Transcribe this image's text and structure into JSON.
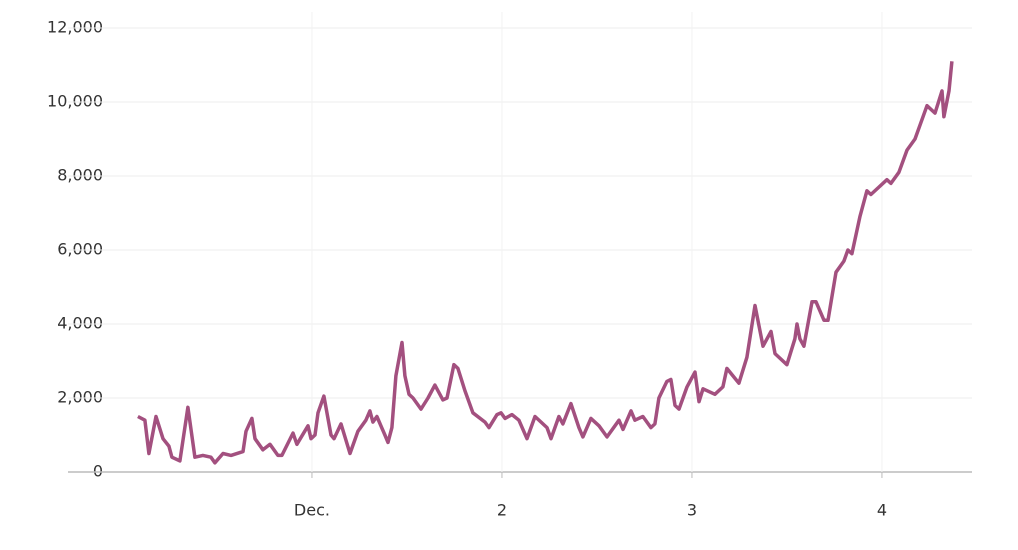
{
  "chart_data": {
    "type": "line",
    "x": [
      0.084,
      0.121,
      0.142,
      0.179,
      0.216,
      0.247,
      0.263,
      0.305,
      0.347,
      0.384,
      0.426,
      0.468,
      0.489,
      0.532,
      0.574,
      0.637,
      0.653,
      0.684,
      0.7,
      0.742,
      0.779,
      0.821,
      0.842,
      0.9,
      0.921,
      0.979,
      0.995,
      1.016,
      1.032,
      1.063,
      1.1,
      1.116,
      1.153,
      1.2,
      1.242,
      1.284,
      1.305,
      1.321,
      1.342,
      1.384,
      1.4,
      1.421,
      1.442,
      1.474,
      1.489,
      1.511,
      1.532,
      1.574,
      1.611,
      1.647,
      1.689,
      1.711,
      1.747,
      1.768,
      1.805,
      1.847,
      1.911,
      1.932,
      1.974,
      1.995,
      2.016,
      2.053,
      2.089,
      2.132,
      2.174,
      2.237,
      2.258,
      2.3,
      2.321,
      2.363,
      2.405,
      2.426,
      2.468,
      2.511,
      2.553,
      2.616,
      2.637,
      2.679,
      2.7,
      2.742,
      2.784,
      2.805,
      2.826,
      2.868,
      2.889,
      2.911,
      2.932,
      2.974,
      3.016,
      3.037,
      3.058,
      3.121,
      3.163,
      3.184,
      3.247,
      3.289,
      3.332,
      3.374,
      3.416,
      3.437,
      3.5,
      3.542,
      3.553,
      3.568,
      3.589,
      3.632,
      3.653,
      3.695,
      3.716,
      3.758,
      3.8,
      3.821,
      3.842,
      3.884,
      3.921,
      3.942,
      3.984,
      4.026,
      4.047,
      4.089,
      4.132,
      4.174,
      4.216,
      4.237,
      4.279,
      4.316,
      4.326,
      4.353,
      4.368
    ],
    "series": [
      {
        "color": "#a3507f",
        "values": [
          1500,
          1400,
          500,
          1500,
          900,
          700,
          400,
          300,
          1750,
          400,
          450,
          400,
          250,
          500,
          450,
          550,
          1100,
          1450,
          900,
          600,
          750,
          450,
          450,
          1050,
          750,
          1250,
          900,
          1000,
          1600,
          2050,
          1000,
          900,
          1300,
          500,
          1100,
          1400,
          1650,
          1350,
          1500,
          1000,
          800,
          1200,
          2600,
          3500,
          2600,
          2100,
          2000,
          1700,
          2000,
          2350,
          1950,
          2000,
          2900,
          2800,
          2200,
          1600,
          1350,
          1200,
          1550,
          1600,
          1450,
          1550,
          1400,
          900,
          1500,
          1200,
          900,
          1500,
          1300,
          1850,
          1200,
          950,
          1450,
          1250,
          950,
          1400,
          1150,
          1650,
          1400,
          1500,
          1200,
          1300,
          2000,
          2450,
          2500,
          1800,
          1700,
          2300,
          2700,
          1900,
          2250,
          2100,
          2300,
          2800,
          2400,
          3100,
          4500,
          3400,
          3800,
          3200,
          2900,
          3600,
          4000,
          3600,
          3400,
          4600,
          4600,
          4100,
          4100,
          5400,
          5700,
          6000,
          5900,
          6900,
          7600,
          7500,
          7700,
          7900,
          7800,
          8100,
          8700,
          9000,
          9600,
          9900,
          9700,
          10300,
          9600,
          10300,
          11100
        ]
      }
    ],
    "xlim": [
      -0.284,
      4.474
    ],
    "xticks": [
      {
        "value": 1,
        "label": "Dec."
      },
      2,
      3,
      4
    ],
    "ylim": [
      0,
      12000
    ],
    "yticks": [
      0,
      {
        "value": 2000,
        "label": "2,000"
      },
      {
        "value": 4000,
        "label": "4,000"
      },
      {
        "value": 6000,
        "label": "6,000"
      },
      {
        "value": 8000,
        "label": "8,000"
      },
      {
        "value": 10000,
        "label": "10,000"
      },
      {
        "value": 12000,
        "label": "12,000"
      }
    ],
    "grid": true
  }
}
